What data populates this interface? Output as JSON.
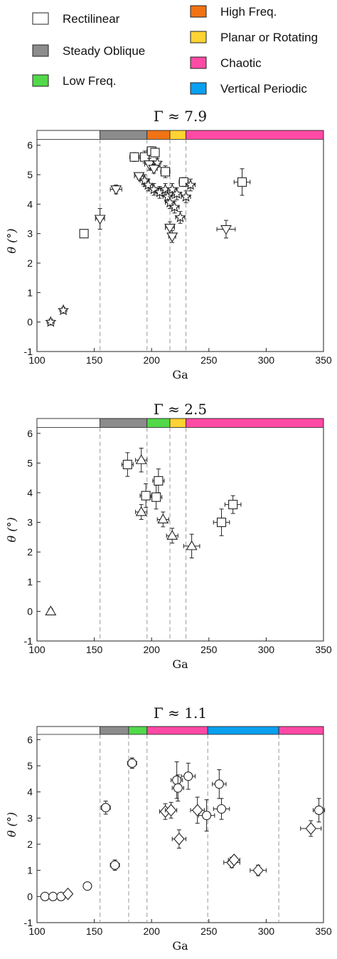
{
  "legend": [
    {
      "label": "Rectilinear",
      "color": "#ffffff"
    },
    {
      "label": "High Freq.",
      "color": "#f07314"
    },
    {
      "label": "Steady Oblique",
      "color": "#8c8c8c"
    },
    {
      "label": "Planar or Rotating",
      "color": "#ffd332"
    },
    {
      "label": "Chaotic",
      "color": "#ff4aa5"
    },
    {
      "label": "Low Freq.",
      "color": "#52d94a"
    },
    {
      "label": "Vertical Periodic",
      "color": "#0aa0f0"
    }
  ],
  "chart_data": [
    {
      "type": "scatter",
      "title": "Γ ≈ 7.9",
      "xlabel": "Ga",
      "ylabel": "θ (°)",
      "xlim": [
        100,
        350
      ],
      "ylim": [
        -1,
        6.5
      ],
      "xticks": [
        "100",
        "150",
        "200",
        "250",
        "300",
        "350"
      ],
      "yticks": [
        "-1",
        "0",
        "1",
        "2",
        "3",
        "4",
        "5",
        "6"
      ],
      "regime_bar": [
        {
          "regime": "Rectilinear",
          "x0": 100,
          "x1": 155,
          "color": "#ffffff"
        },
        {
          "regime": "Steady Oblique",
          "x0": 155,
          "x1": 196,
          "color": "#8c8c8c"
        },
        {
          "regime": "High Freq.",
          "x0": 196,
          "x1": 216,
          "color": "#f07314"
        },
        {
          "regime": "Planar or Rotating",
          "x0": 216,
          "x1": 230,
          "color": "#ffd332"
        },
        {
          "regime": "Chaotic",
          "x0": 230,
          "x1": 350,
          "color": "#ff4aa5"
        }
      ],
      "boundaries": [
        155,
        196,
        216,
        230
      ],
      "points": [
        {
          "x": 112,
          "y": 0.0,
          "xerr": 3,
          "yerr": 0.1,
          "marker": "star"
        },
        {
          "x": 123,
          "y": 0.4,
          "xerr": 3,
          "yerr": 0.1,
          "marker": "star"
        },
        {
          "x": 141,
          "y": 3.0,
          "xerr": 3,
          "yerr": 0.1,
          "marker": "square"
        },
        {
          "x": 155,
          "y": 3.5,
          "xerr": 4,
          "yerr": 0.35,
          "marker": "triangle-down"
        },
        {
          "x": 169,
          "y": 4.5,
          "xerr": 5,
          "yerr": 0.15,
          "marker": "triangle-down"
        },
        {
          "x": 185,
          "y": 5.6,
          "xerr": 4,
          "yerr": 0.15,
          "marker": "square"
        },
        {
          "x": 189,
          "y": 4.95,
          "xerr": 4,
          "yerr": 0.1,
          "marker": "triangle-down"
        },
        {
          "x": 194,
          "y": 5.6,
          "xerr": 4,
          "yerr": 0.2,
          "marker": "square"
        },
        {
          "x": 200,
          "y": 5.8,
          "xerr": 4,
          "yerr": 0.15,
          "marker": "square"
        },
        {
          "x": 198,
          "y": 5.35,
          "xerr": 4,
          "yerr": 0.2,
          "marker": "triangle-down"
        },
        {
          "x": 203,
          "y": 5.75,
          "xerr": 3,
          "yerr": 0.15,
          "marker": "square"
        },
        {
          "x": 205,
          "y": 5.4,
          "xerr": 3,
          "yerr": 0.15,
          "marker": "star"
        },
        {
          "x": 202,
          "y": 5.2,
          "xerr": 3,
          "yerr": 0.15,
          "marker": "triangle-down"
        },
        {
          "x": 212,
          "y": 5.1,
          "xerr": 4,
          "yerr": 0.2,
          "marker": "square"
        },
        {
          "x": 194,
          "y": 4.8,
          "xerr": 4,
          "yerr": 0.2,
          "marker": "star"
        },
        {
          "x": 197,
          "y": 4.65,
          "xerr": 4,
          "yerr": 0.2,
          "marker": "star"
        },
        {
          "x": 202,
          "y": 4.5,
          "xerr": 4,
          "yerr": 0.2,
          "marker": "star"
        },
        {
          "x": 207,
          "y": 4.4,
          "xerr": 4,
          "yerr": 0.2,
          "marker": "star"
        },
        {
          "x": 212,
          "y": 4.5,
          "xerr": 4,
          "yerr": 0.2,
          "marker": "star"
        },
        {
          "x": 214,
          "y": 4.25,
          "xerr": 4,
          "yerr": 0.2,
          "marker": "star"
        },
        {
          "x": 218,
          "y": 4.5,
          "xerr": 4,
          "yerr": 0.2,
          "marker": "star"
        },
        {
          "x": 222,
          "y": 4.35,
          "xerr": 4,
          "yerr": 0.2,
          "marker": "star"
        },
        {
          "x": 216,
          "y": 4.05,
          "xerr": 4,
          "yerr": 0.2,
          "marker": "star"
        },
        {
          "x": 220,
          "y": 3.9,
          "xerr": 4,
          "yerr": 0.2,
          "marker": "star"
        },
        {
          "x": 228,
          "y": 4.75,
          "xerr": 4,
          "yerr": 0.15,
          "marker": "square"
        },
        {
          "x": 234,
          "y": 4.65,
          "xerr": 4,
          "yerr": 0.2,
          "marker": "star"
        },
        {
          "x": 230,
          "y": 4.25,
          "xerr": 4,
          "yerr": 0.2,
          "marker": "star"
        },
        {
          "x": 225,
          "y": 3.55,
          "xerr": 4,
          "yerr": 0.2,
          "marker": "star"
        },
        {
          "x": 216,
          "y": 3.2,
          "xerr": 4,
          "yerr": 0.2,
          "marker": "triangle-down"
        },
        {
          "x": 218,
          "y": 2.9,
          "xerr": 3,
          "yerr": 0.2,
          "marker": "triangle-down"
        },
        {
          "x": 265,
          "y": 3.15,
          "xerr": 8,
          "yerr": 0.3,
          "marker": "triangle-down"
        },
        {
          "x": 279,
          "y": 4.75,
          "xerr": 7,
          "yerr": 0.45,
          "marker": "square"
        }
      ]
    },
    {
      "type": "scatter",
      "title": "Γ ≈ 2.5",
      "xlabel": "Ga",
      "ylabel": "θ (°)",
      "xlim": [
        100,
        350
      ],
      "ylim": [
        -1,
        6.5
      ],
      "xticks": [
        "100",
        "150",
        "200",
        "250",
        "300",
        "350"
      ],
      "yticks": [
        "-1",
        "0",
        "1",
        "2",
        "3",
        "4",
        "5",
        "6"
      ],
      "regime_bar": [
        {
          "regime": "Rectilinear",
          "x0": 100,
          "x1": 155,
          "color": "#ffffff"
        },
        {
          "regime": "Steady Oblique",
          "x0": 155,
          "x1": 196,
          "color": "#8c8c8c"
        },
        {
          "regime": "Low Freq.",
          "x0": 196,
          "x1": 216,
          "color": "#52d94a"
        },
        {
          "regime": "Planar or Rotating",
          "x0": 216,
          "x1": 230,
          "color": "#ffd332"
        },
        {
          "regime": "Chaotic",
          "x0": 230,
          "x1": 350,
          "color": "#ff4aa5"
        }
      ],
      "boundaries": [
        155,
        196,
        216,
        230
      ],
      "points": [
        {
          "x": 112,
          "y": 0.0,
          "xerr": 2,
          "yerr": 0.1,
          "marker": "triangle-up"
        },
        {
          "x": 179,
          "y": 4.95,
          "xerr": 5,
          "yerr": 0.4,
          "marker": "square"
        },
        {
          "x": 191,
          "y": 5.1,
          "xerr": 5,
          "yerr": 0.4,
          "marker": "triangle-up"
        },
        {
          "x": 206,
          "y": 4.4,
          "xerr": 5,
          "yerr": 0.4,
          "marker": "square"
        },
        {
          "x": 195,
          "y": 3.9,
          "xerr": 5,
          "yerr": 0.4,
          "marker": "square"
        },
        {
          "x": 204,
          "y": 3.85,
          "xerr": 5,
          "yerr": 0.4,
          "marker": "square"
        },
        {
          "x": 191,
          "y": 3.35,
          "xerr": 5,
          "yerr": 0.25,
          "marker": "triangle-up"
        },
        {
          "x": 210,
          "y": 3.1,
          "xerr": 5,
          "yerr": 0.25,
          "marker": "triangle-up"
        },
        {
          "x": 218,
          "y": 2.55,
          "xerr": 5,
          "yerr": 0.25,
          "marker": "triangle-up"
        },
        {
          "x": 235,
          "y": 2.2,
          "xerr": 7,
          "yerr": 0.4,
          "marker": "triangle-up"
        },
        {
          "x": 261,
          "y": 3.0,
          "xerr": 7,
          "yerr": 0.45,
          "marker": "square"
        },
        {
          "x": 271,
          "y": 3.6,
          "xerr": 7,
          "yerr": 0.3,
          "marker": "square"
        }
      ]
    },
    {
      "type": "scatter",
      "title": "Γ ≈ 1.1",
      "xlabel": "Ga",
      "ylabel": "θ (°)",
      "xlim": [
        100,
        350
      ],
      "ylim": [
        -1,
        6.5
      ],
      "xticks": [
        "100",
        "150",
        "200",
        "250",
        "300",
        "350"
      ],
      "yticks": [
        "-1",
        "0",
        "1",
        "2",
        "3",
        "4",
        "5",
        "6"
      ],
      "regime_bar": [
        {
          "regime": "Rectilinear",
          "x0": 100,
          "x1": 155,
          "color": "#ffffff"
        },
        {
          "regime": "Steady Oblique",
          "x0": 155,
          "x1": 180,
          "color": "#8c8c8c"
        },
        {
          "regime": "Low Freq.",
          "x0": 180,
          "x1": 196,
          "color": "#52d94a"
        },
        {
          "regime": "Chaotic",
          "x0": 196,
          "x1": 249,
          "color": "#ff4aa5"
        },
        {
          "regime": "Vertical Periodic",
          "x0": 249,
          "x1": 311,
          "color": "#0aa0f0"
        },
        {
          "regime": "Chaotic",
          "x0": 311,
          "x1": 350,
          "color": "#ff4aa5"
        }
      ],
      "boundaries": [
        155,
        180,
        196,
        249,
        311
      ],
      "points": [
        {
          "x": 107,
          "y": 0.0,
          "xerr": 3,
          "yerr": 0.05,
          "marker": "circle"
        },
        {
          "x": 114,
          "y": 0.0,
          "xerr": 3,
          "yerr": 0.05,
          "marker": "circle"
        },
        {
          "x": 121,
          "y": 0.0,
          "xerr": 3,
          "yerr": 0.05,
          "marker": "circle"
        },
        {
          "x": 127,
          "y": 0.1,
          "xerr": 3,
          "yerr": 0.1,
          "marker": "diamond"
        },
        {
          "x": 144,
          "y": 0.4,
          "xerr": 3,
          "yerr": 0.1,
          "marker": "circle"
        },
        {
          "x": 160,
          "y": 3.4,
          "xerr": 4,
          "yerr": 0.25,
          "marker": "circle"
        },
        {
          "x": 168,
          "y": 1.2,
          "xerr": 4,
          "yerr": 0.2,
          "marker": "circle"
        },
        {
          "x": 183,
          "y": 5.1,
          "xerr": 4,
          "yerr": 0.2,
          "marker": "circle"
        },
        {
          "x": 212,
          "y": 3.25,
          "xerr": 5,
          "yerr": 0.3,
          "marker": "diamond"
        },
        {
          "x": 217,
          "y": 3.3,
          "xerr": 5,
          "yerr": 0.3,
          "marker": "diamond"
        },
        {
          "x": 222,
          "y": 4.45,
          "xerr": 5,
          "yerr": 0.7,
          "marker": "circle"
        },
        {
          "x": 223,
          "y": 4.15,
          "xerr": 5,
          "yerr": 0.5,
          "marker": "circle"
        },
        {
          "x": 224,
          "y": 2.2,
          "xerr": 6,
          "yerr": 0.35,
          "marker": "diamond"
        },
        {
          "x": 232,
          "y": 4.6,
          "xerr": 6,
          "yerr": 0.5,
          "marker": "circle"
        },
        {
          "x": 240,
          "y": 3.3,
          "xerr": 6,
          "yerr": 0.5,
          "marker": "diamond"
        },
        {
          "x": 248,
          "y": 3.1,
          "xerr": 7,
          "yerr": 0.6,
          "marker": "circle"
        },
        {
          "x": 259,
          "y": 4.3,
          "xerr": 6,
          "yerr": 0.55,
          "marker": "circle"
        },
        {
          "x": 261,
          "y": 3.35,
          "xerr": 7,
          "yerr": 0.4,
          "marker": "circle"
        },
        {
          "x": 270,
          "y": 1.3,
          "xerr": 7,
          "yerr": 0.2,
          "marker": "diamond"
        },
        {
          "x": 272,
          "y": 1.4,
          "xerr": 5,
          "yerr": 0.15,
          "marker": "diamond"
        },
        {
          "x": 293,
          "y": 1.0,
          "xerr": 7,
          "yerr": 0.2,
          "marker": "diamond"
        },
        {
          "x": 339,
          "y": 2.6,
          "xerr": 9,
          "yerr": 0.3,
          "marker": "diamond"
        },
        {
          "x": 346,
          "y": 3.3,
          "xerr": 5,
          "yerr": 0.45,
          "marker": "circle"
        }
      ]
    }
  ]
}
